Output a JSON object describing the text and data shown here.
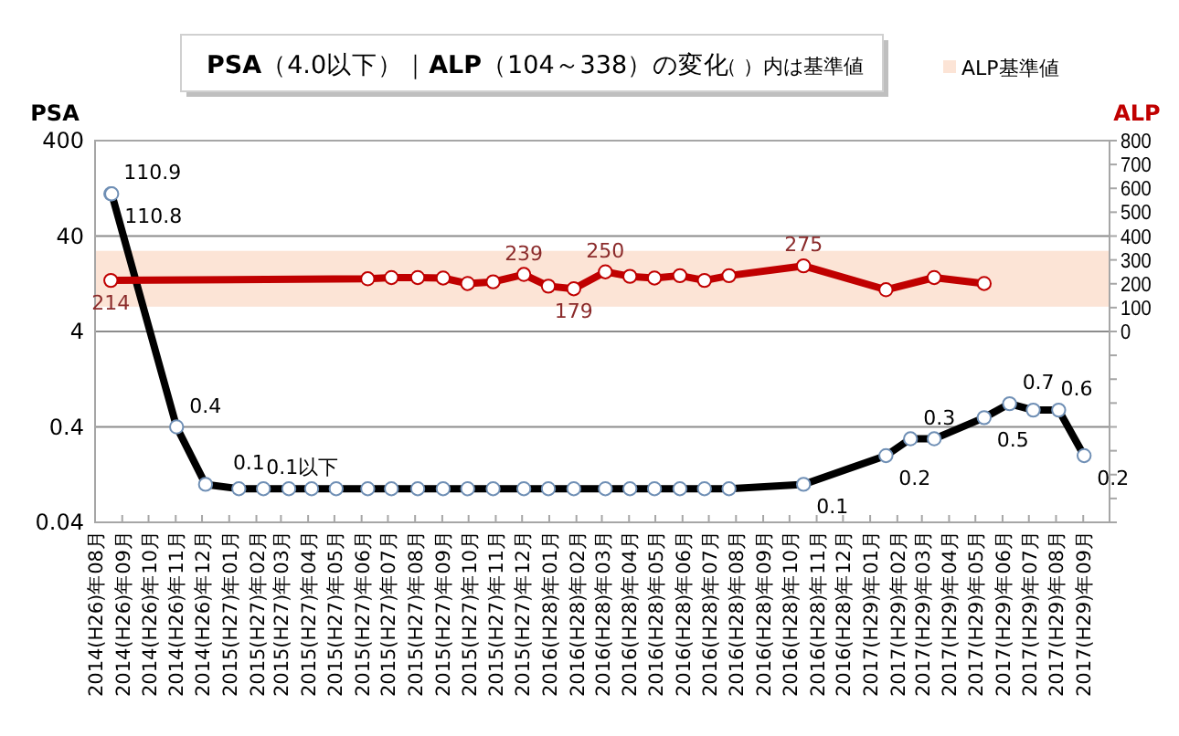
{
  "chart_data": {
    "type": "line",
    "title": "**PSA**（4.0以下）｜**ALP**（104～338）の変化",
    "subtitle": "（ ）内は基準値",
    "ylabel": "PSA",
    "y2label": "ALP",
    "x": [
      "2014-08-19",
      "2014-08-20",
      "2014-11-02",
      "2014-12-05",
      "2015-01-12",
      "2015-02-09",
      "2015-03-10",
      "2015-04-05",
      "2015-05-03",
      "2015-06-08",
      "2015-07-05",
      "2015-08-04",
      "2015-09-02",
      "2015-09-30",
      "2015-10-29",
      "2015-12-03",
      "2015-12-31",
      "2016-01-29",
      "2016-03-05",
      "2016-04-02",
      "2016-04-30",
      "2016-05-29",
      "2016-06-26",
      "2016-07-24",
      "2016-10-17",
      "2017-01-19",
      "2017-02-16",
      "2017-03-15",
      "2017-05-11",
      "2017-06-09",
      "2017-07-06",
      "2017-08-04",
      "2017-09-02"
    ],
    "series": [
      {
        "color": "#000000",
        "values": [
          110.9,
          110.8,
          0.4,
          0.1,
          0.09,
          0.09,
          0.09,
          0.09,
          0.09,
          0.09,
          0.09,
          0.09,
          0.09,
          0.09,
          0.09,
          0.09,
          0.09,
          0.09,
          0.09,
          0.09,
          0.09,
          0.09,
          0.09,
          0.09,
          0.1,
          0.2,
          0.3,
          0.3,
          0.5,
          0.7,
          0.6,
          0.6,
          0.2
        ],
        "value_labels": [
          "110.9",
          "110.8",
          "0.4",
          "0.1",
          "0.1以下",
          null,
          null,
          null,
          null,
          null,
          null,
          null,
          null,
          null,
          null,
          null,
          null,
          null,
          null,
          null,
          null,
          null,
          null,
          null,
          "0.1",
          "0.2",
          "0.3",
          null,
          "0.5",
          "0.7",
          "0.6",
          null,
          "0.2"
        ]
      },
      {
        "color": "#c00000",
        "axis": "y2",
        "x": [
          "2014-08-19",
          "2015-06-08",
          "2015-07-05",
          "2015-08-04",
          "2015-09-02",
          "2015-09-30",
          "2015-10-29",
          "2015-12-03",
          "2015-12-31",
          "2016-01-29",
          "2016-03-05",
          "2016-04-02",
          "2016-04-30",
          "2016-05-29",
          "2016-06-26",
          "2016-07-24",
          "2016-10-17",
          "2017-01-19",
          "2017-03-15",
          "2017-05-11"
        ],
        "values": [
          214,
          221,
          226,
          226,
          224,
          201,
          208,
          239,
          190,
          179,
          250,
          231,
          224,
          234,
          214,
          234,
          275,
          175,
          226,
          201
        ],
        "value_labels": [
          "214",
          null,
          null,
          null,
          null,
          null,
          null,
          "239",
          null,
          "179",
          "250",
          null,
          null,
          null,
          null,
          null,
          "275",
          null,
          null,
          null
        ]
      }
    ],
    "bands": [
      {
        "axis": "y2",
        "from": 104,
        "to": 338,
        "label": "ALP基準値",
        "color": "#fce4d6"
      }
    ],
    "xlim": [
      "2014-08-01",
      "2017-10-01"
    ],
    "xticks": [
      {
        "value": "2014-08",
        "label": "2014(H26)年08月"
      },
      {
        "value": "2014-09",
        "label": "2014(H26)年09月"
      },
      {
        "value": "2014-10",
        "label": "2014(H26)年10月"
      },
      {
        "value": "2014-11",
        "label": "2014(H26)年11月"
      },
      {
        "value": "2014-12",
        "label": "2014(H26)年12月"
      },
      {
        "value": "2015-01",
        "label": "2015(H27)年01月"
      },
      {
        "value": "2015-02",
        "label": "2015(H27)年02月"
      },
      {
        "value": "2015-03",
        "label": "2015(H27)年03月"
      },
      {
        "value": "2015-04",
        "label": "2015(H27)年04月"
      },
      {
        "value": "2015-05",
        "label": "2015(H27)年05月"
      },
      {
        "value": "2015-06",
        "label": "2015(H27)年06月"
      },
      {
        "value": "2015-07",
        "label": "2015(H27)年07月"
      },
      {
        "value": "2015-08",
        "label": "2015(H27)年08月"
      },
      {
        "value": "2015-09",
        "label": "2015(H27)年09月"
      },
      {
        "value": "2015-10",
        "label": "2015(H27)年10月"
      },
      {
        "value": "2015-11",
        "label": "2015(H27)年11月"
      },
      {
        "value": "2015-12",
        "label": "2015(H27)年12月"
      },
      {
        "value": "2016-01",
        "label": "2016(H28)年01月"
      },
      {
        "value": "2016-02",
        "label": "2016(H28)年02月"
      },
      {
        "value": "2016-03",
        "label": "2016(H28)年03月"
      },
      {
        "value": "2016-04",
        "label": "2016(H28)年04月"
      },
      {
        "value": "2016-05",
        "label": "2016(H28)年05月"
      },
      {
        "value": "2016-06",
        "label": "2016(H28)年06月"
      },
      {
        "value": "2016-07",
        "label": "2016(H28)年07月"
      },
      {
        "value": "2016-08",
        "label": "2016(H28)年08月"
      },
      {
        "value": "2016-09",
        "label": "2016(H28)年09月"
      },
      {
        "value": "2016-10",
        "label": "2016(H28)年10月"
      },
      {
        "value": "2016-11",
        "label": "2016(H28)年11月"
      },
      {
        "value": "2016-12",
        "label": "2016(H28)年12月"
      },
      {
        "value": "2017-01",
        "label": "2017(H29)年01月"
      },
      {
        "value": "2017-02",
        "label": "2017(H29)年02月"
      },
      {
        "value": "2017-03",
        "label": "2017(H29)年03月"
      },
      {
        "value": "2017-04",
        "label": "2017(H29)年04月"
      },
      {
        "value": "2017-05",
        "label": "2017(H29)年05月"
      },
      {
        "value": "2017-06",
        "label": "2017(H29)年06月"
      },
      {
        "value": "2017-07",
        "label": "2017(H29)年07月"
      },
      {
        "value": "2017-08",
        "label": "2017(H29)年08月"
      },
      {
        "value": "2017-09",
        "label": "2017(H29)年09月"
      }
    ],
    "ylim": [
      0.04,
      400
    ],
    "yticks": [
      0.04,
      0.4,
      4,
      40,
      400
    ],
    "log": "y",
    "y2lim": [
      -800,
      800
    ],
    "y2ticks": [
      {
        "value": -800,
        "label": null
      },
      {
        "value": -700,
        "label": null
      },
      {
        "value": -600,
        "label": null
      },
      {
        "value": -500,
        "label": null
      },
      {
        "value": -400,
        "label": null
      },
      {
        "value": -300,
        "label": null
      },
      {
        "value": -200,
        "label": null
      },
      {
        "value": -100,
        "label": null
      },
      0,
      100,
      200,
      300,
      400,
      500,
      600,
      700,
      800
    ],
    "grid": "y",
    "legend": "top right",
    "marker": "circle",
    "line_style": "solid"
  }
}
